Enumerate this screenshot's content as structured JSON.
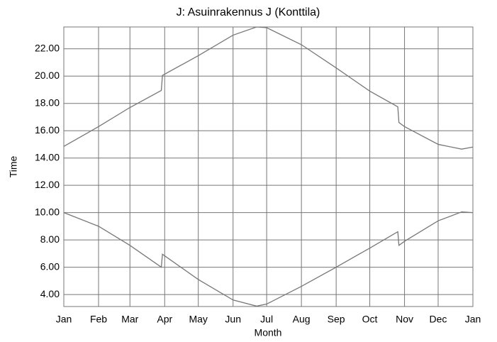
{
  "chart_data": {
    "type": "line",
    "title": "J: Asuinrakennus J (Konttila)",
    "x_label": "Month",
    "y_label": "Time",
    "grid": true,
    "xlim": [
      0,
      365
    ],
    "xticks": [
      {
        "value": 0,
        "label": "Jan"
      },
      {
        "value": 31,
        "label": "Feb"
      },
      {
        "value": 59,
        "label": "Mar"
      },
      {
        "value": 90,
        "label": "Apr"
      },
      {
        "value": 120,
        "label": "May"
      },
      {
        "value": 151,
        "label": "Jun"
      },
      {
        "value": 181,
        "label": "Jul"
      },
      {
        "value": 212,
        "label": "Aug"
      },
      {
        "value": 243,
        "label": "Sep"
      },
      {
        "value": 273,
        "label": "Oct"
      },
      {
        "value": 304,
        "label": "Nov"
      },
      {
        "value": 334,
        "label": "Dec"
      },
      {
        "value": 365,
        "label": "Jan"
      }
    ],
    "ylim": [
      3.12,
      23.6
    ],
    "yticks": [
      {
        "value": 4,
        "label": "4.00"
      },
      {
        "value": 6,
        "label": "6.00"
      },
      {
        "value": 8,
        "label": "8.00"
      },
      {
        "value": 10,
        "label": "10.00"
      },
      {
        "value": 12,
        "label": "12.00"
      },
      {
        "value": 14,
        "label": "14.00"
      },
      {
        "value": 16,
        "label": "16.00"
      },
      {
        "value": 18,
        "label": "18.00"
      },
      {
        "value": 20,
        "label": "20.00"
      },
      {
        "value": 22,
        "label": "22.00"
      }
    ],
    "x": [
      0,
      31,
      59,
      87,
      88,
      120,
      151,
      172,
      181,
      212,
      243,
      273,
      298,
      299,
      304,
      334,
      355,
      365
    ],
    "series": [
      {
        "color": "#777777",
        "values": [
          14.85,
          16.3,
          17.7,
          18.95,
          20.05,
          21.5,
          23.0,
          23.6,
          23.55,
          22.3,
          20.6,
          18.9,
          17.75,
          16.6,
          16.3,
          15.0,
          14.65,
          14.8
        ]
      },
      {
        "color": "#777777",
        "values": [
          10.0,
          9.0,
          7.6,
          6.0,
          6.95,
          5.1,
          3.6,
          3.15,
          3.3,
          4.6,
          6.0,
          7.4,
          8.6,
          7.6,
          7.9,
          9.4,
          10.05,
          10.0
        ]
      }
    ]
  }
}
